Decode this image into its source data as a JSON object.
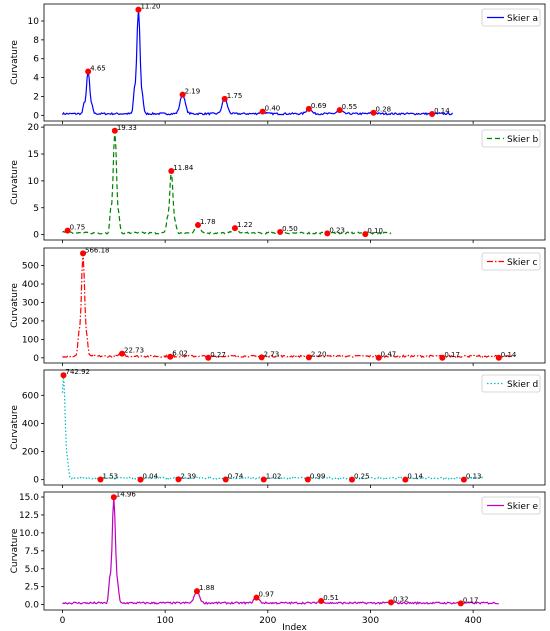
{
  "chart_data": [
    {
      "type": "line",
      "legend": "Skier a",
      "legend_position": "top-right",
      "ylabel": "Curvature",
      "xlabel": "",
      "color": "#0000ff",
      "linestyle": "solid",
      "xlim": [
        -18,
        470
      ],
      "ylim": [
        -0.6,
        11.8
      ],
      "yticks": [
        0,
        2,
        4,
        6,
        8,
        10
      ],
      "xtick_labels_shown": false,
      "x_end": 380,
      "peaks": [
        {
          "x": 25,
          "y": 4.65,
          "label": "4.65"
        },
        {
          "x": 74,
          "y": 11.2,
          "label": "11.20"
        },
        {
          "x": 117,
          "y": 2.19,
          "label": "2.19"
        },
        {
          "x": 158,
          "y": 1.75,
          "label": "1.75"
        },
        {
          "x": 195,
          "y": 0.4,
          "label": "0.40"
        },
        {
          "x": 240,
          "y": 0.69,
          "label": "0.69"
        },
        {
          "x": 270,
          "y": 0.55,
          "label": "0.55"
        },
        {
          "x": 303,
          "y": 0.28,
          "label": "0.28"
        },
        {
          "x": 360,
          "y": 0.14,
          "label": "0.14"
        }
      ]
    },
    {
      "type": "line",
      "legend": "Skier b",
      "legend_position": "top-right",
      "ylabel": "Curvature",
      "xlabel": "",
      "color": "#008000",
      "linestyle": "dashed",
      "xlim": [
        -18,
        470
      ],
      "ylim": [
        -1.0,
        20.4
      ],
      "yticks": [
        0,
        5,
        10,
        15,
        20
      ],
      "xtick_labels_shown": false,
      "x_end": 320,
      "peaks": [
        {
          "x": 5,
          "y": 0.75,
          "label": "0.75"
        },
        {
          "x": 51,
          "y": 19.33,
          "label": "19.33"
        },
        {
          "x": 106,
          "y": 11.84,
          "label": "11.84"
        },
        {
          "x": 132,
          "y": 1.78,
          "label": "1.78"
        },
        {
          "x": 168,
          "y": 1.22,
          "label": "1.22"
        },
        {
          "x": 212,
          "y": 0.5,
          "label": "0.50"
        },
        {
          "x": 258,
          "y": 0.23,
          "label": "0.23"
        },
        {
          "x": 295,
          "y": 0.1,
          "label": "0.10"
        }
      ]
    },
    {
      "type": "line",
      "legend": "Skier c",
      "legend_position": "top-right",
      "ylabel": "Curvature",
      "xlabel": "",
      "color": "#ff0000",
      "linestyle": "dashdot",
      "xlim": [
        -18,
        470
      ],
      "ylim": [
        -28,
        595
      ],
      "yticks": [
        0,
        100,
        200,
        300,
        400,
        500
      ],
      "xtick_labels_shown": false,
      "x_end": 440,
      "peaks": [
        {
          "x": 20,
          "y": 566.18,
          "label": "566.18"
        },
        {
          "x": 58,
          "y": 22.73,
          "label": "22.73"
        },
        {
          "x": 105,
          "y": 6.02,
          "label": "6.02"
        },
        {
          "x": 142,
          "y": 0.27,
          "label": "0.27"
        },
        {
          "x": 194,
          "y": 2.73,
          "label": "2.73"
        },
        {
          "x": 240,
          "y": 2.2,
          "label": "2.20"
        },
        {
          "x": 308,
          "y": 0.47,
          "label": "0.47"
        },
        {
          "x": 370,
          "y": 0.17,
          "label": "0.17"
        },
        {
          "x": 425,
          "y": 0.14,
          "label": "0.14"
        }
      ]
    },
    {
      "type": "line",
      "legend": "Skier d",
      "legend_position": "top-right",
      "ylabel": "Curvature",
      "xlabel": "",
      "color": "#00bfbf",
      "linestyle": "dotted",
      "xlim": [
        -18,
        470
      ],
      "ylim": [
        -38,
        780
      ],
      "yticks": [
        0,
        200,
        400,
        600
      ],
      "xtick_labels_shown": false,
      "x_end": 410,
      "peaks": [
        {
          "x": 1,
          "y": 742.92,
          "label": "742.92"
        },
        {
          "x": 37,
          "y": 1.53,
          "label": "1.53"
        },
        {
          "x": 76,
          "y": 0.04,
          "label": "0.04"
        },
        {
          "x": 113,
          "y": 2.39,
          "label": "2.39"
        },
        {
          "x": 159,
          "y": 0.74,
          "label": "0.74"
        },
        {
          "x": 196,
          "y": 1.02,
          "label": "1.02"
        },
        {
          "x": 239,
          "y": 0.99,
          "label": "0.99"
        },
        {
          "x": 282,
          "y": 0.25,
          "label": "0.25"
        },
        {
          "x": 334,
          "y": 0.14,
          "label": "0.14"
        },
        {
          "x": 391,
          "y": 0.13,
          "label": "0.13"
        }
      ]
    },
    {
      "type": "line",
      "legend": "Skier e",
      "legend_position": "top-right",
      "ylabel": "Curvature",
      "xlabel": "Index",
      "color": "#bf00bf",
      "linestyle": "solid",
      "xlim": [
        -18,
        470
      ],
      "ylim": [
        -0.75,
        15.7
      ],
      "yticks": [
        0.0,
        2.5,
        5.0,
        7.5,
        10.0,
        12.5,
        15.0
      ],
      "ytick_labels": [
        "0.0",
        "2.5",
        "5.0",
        "7.5",
        "10.0",
        "12.5",
        "15.0"
      ],
      "xticks": [
        0,
        100,
        200,
        300,
        400
      ],
      "xtick_labels_shown": true,
      "x_end": 425,
      "peaks": [
        {
          "x": 50,
          "y": 14.96,
          "label": "14.96"
        },
        {
          "x": 131,
          "y": 1.88,
          "label": "1.88"
        },
        {
          "x": 189,
          "y": 0.97,
          "label": "0.97"
        },
        {
          "x": 252,
          "y": 0.51,
          "label": "0.51"
        },
        {
          "x": 320,
          "y": 0.32,
          "label": "0.32"
        },
        {
          "x": 388,
          "y": 0.17,
          "label": "0.17"
        }
      ]
    }
  ]
}
